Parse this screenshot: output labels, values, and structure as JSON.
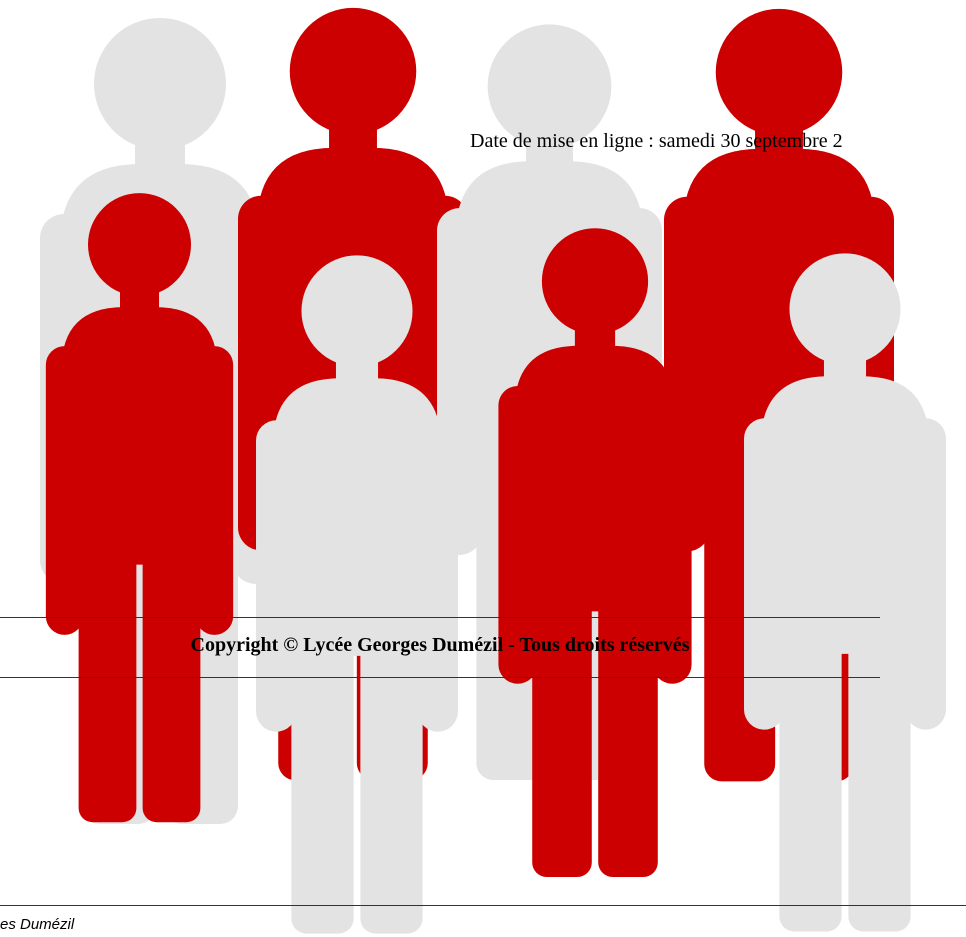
{
  "article": {
    "date_line": "Date de mise en ligne : samedi 30 septembre 2"
  },
  "footer": {
    "copyright": "Copyright © Lycée Georges Dumézil - Tous droits réservés",
    "site_name": "es Dumézil"
  }
}
